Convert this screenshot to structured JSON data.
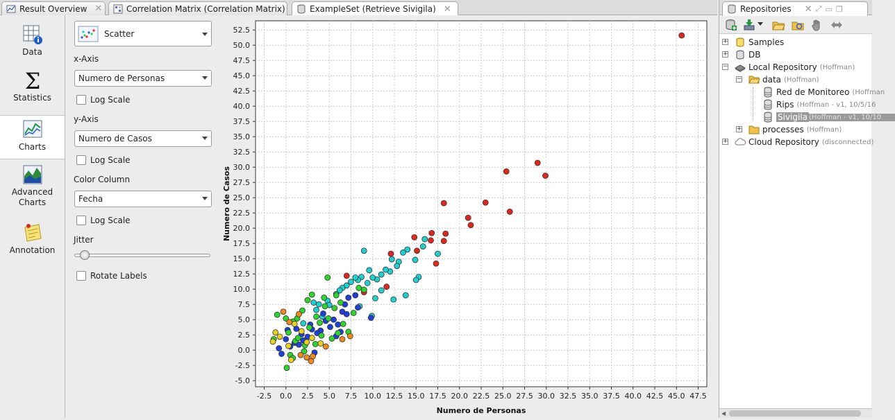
{
  "tabs": [
    {
      "label": "Result Overview",
      "active": false
    },
    {
      "label": "Correlation Matrix (Correlation Matrix)",
      "active": false
    },
    {
      "label": "ExampleSet (Retrieve Sivigila)",
      "active": true
    }
  ],
  "left_rail": [
    {
      "label": "Data",
      "icon": "table-info-icon"
    },
    {
      "label": "Statistics",
      "icon": "sigma-icon"
    },
    {
      "label": "Charts",
      "icon": "chart-icon",
      "active": true
    },
    {
      "label": "Advanced Charts",
      "icon": "advanced-chart-icon"
    },
    {
      "label": "Annotation",
      "icon": "note-icon"
    }
  ],
  "config": {
    "plot_type": "Scatter",
    "x_axis_label": "x-Axis",
    "x_axis_value": "Numero de Personas",
    "y_axis_label": "y-Axis",
    "y_axis_value": "Numero de Casos",
    "color_label": "Color Column",
    "color_value": "Fecha",
    "log_scale": "Log Scale",
    "jitter_label": "Jitter",
    "jitter_value": 0,
    "rotate_labels": "Rotate Labels"
  },
  "repositories": {
    "title": "Repositories",
    "tree": [
      {
        "name": "Samples",
        "sub": "",
        "depth": 0,
        "expander": "+",
        "icon": "samples-icon"
      },
      {
        "name": "DB",
        "sub": "",
        "depth": 0,
        "expander": "+",
        "icon": "db-icon"
      },
      {
        "name": "Local Repository",
        "sub": "(Hoffman)",
        "depth": 0,
        "expander": "-",
        "icon": "local-repo-icon"
      },
      {
        "name": "data",
        "sub": "(Hoffman)",
        "depth": 1,
        "expander": "-",
        "icon": "folder-open-icon"
      },
      {
        "name": "Red de Monitoreo",
        "sub": "(Hoffman",
        "depth": 2,
        "expander": "",
        "icon": "dataset-icon"
      },
      {
        "name": "Rips",
        "sub": "(Hoffman - v1, 10/5/16",
        "depth": 2,
        "expander": "",
        "icon": "dataset-icon"
      },
      {
        "name": "Sivigila",
        "sub": "(Hoffman - v1, 10/10",
        "depth": 2,
        "expander": "",
        "icon": "dataset-icon",
        "selected": true
      },
      {
        "name": "processes",
        "sub": "(Hoffman)",
        "depth": 1,
        "expander": "+",
        "icon": "folder-icon"
      },
      {
        "name": "Cloud Repository",
        "sub": "(disconnected)",
        "depth": 0,
        "expander": "+",
        "icon": "cloud-icon"
      }
    ]
  },
  "chart_data": {
    "type": "scatter",
    "xlabel": "Numero de Personas",
    "ylabel": "Numero de Casos",
    "xlim": [
      -3.5,
      48.5
    ],
    "ylim": [
      -6.0,
      54.0
    ],
    "xticks": [
      -2.5,
      0.0,
      2.5,
      5.0,
      7.5,
      10.0,
      12.5,
      15.0,
      17.5,
      20.0,
      22.5,
      25.0,
      27.5,
      30.0,
      32.5,
      35.0,
      37.5,
      40.0,
      42.5,
      45.0,
      47.5
    ],
    "yticks": [
      -5.0,
      -2.5,
      0.0,
      2.5,
      5.0,
      7.5,
      10.0,
      12.5,
      15.0,
      17.5,
      20.0,
      22.5,
      25.0,
      27.5,
      30.0,
      32.5,
      35.0,
      37.5,
      40.0,
      42.5,
      45.0,
      47.5,
      50.0,
      52.5
    ],
    "grid": true,
    "legend": "none",
    "color_scale": {
      "blue": "#1f3fdc",
      "teal": "#1fd0d0",
      "green": "#2cd62c",
      "yellow": "#e8d21c",
      "orange": "#f08a1c",
      "red": "#e3261c"
    },
    "points": [
      [
        45.6,
        51.6,
        "red"
      ],
      [
        29.0,
        30.7,
        "red"
      ],
      [
        29.9,
        28.6,
        "red"
      ],
      [
        25.4,
        29.3,
        "red"
      ],
      [
        25.8,
        22.7,
        "red"
      ],
      [
        23.0,
        24.2,
        "red"
      ],
      [
        21.0,
        21.7,
        "red"
      ],
      [
        21.3,
        20.5,
        "red"
      ],
      [
        18.2,
        24.1,
        "red"
      ],
      [
        18.4,
        19.1,
        "red"
      ],
      [
        18.2,
        17.9,
        "red"
      ],
      [
        16.8,
        19.2,
        "red"
      ],
      [
        16.7,
        18.0,
        "red"
      ],
      [
        17.3,
        14.2,
        "red"
      ],
      [
        14.8,
        18.5,
        "red"
      ],
      [
        15.1,
        16.3,
        "red"
      ],
      [
        12.1,
        15.8,
        "red"
      ],
      [
        11.6,
        10.4,
        "red"
      ],
      [
        9.0,
        9.5,
        "red"
      ],
      [
        7.0,
        12.2,
        "red"
      ],
      [
        16.0,
        18.2,
        "teal"
      ],
      [
        15.8,
        17.0,
        "teal"
      ],
      [
        17.5,
        15.8,
        "teal"
      ],
      [
        14.0,
        16.5,
        "teal"
      ],
      [
        13.5,
        16.0,
        "teal"
      ],
      [
        14.9,
        14.8,
        "teal"
      ],
      [
        13.0,
        14.5,
        "teal"
      ],
      [
        12.8,
        13.8,
        "teal"
      ],
      [
        12.2,
        14.9,
        "teal"
      ],
      [
        12.0,
        12.9,
        "teal"
      ],
      [
        11.5,
        13.2,
        "teal"
      ],
      [
        11.0,
        12.4,
        "teal"
      ],
      [
        10.5,
        11.6,
        "teal"
      ],
      [
        10.0,
        11.9,
        "teal"
      ],
      [
        9.6,
        13.1,
        "teal"
      ],
      [
        9.4,
        11.0,
        "teal"
      ],
      [
        9.0,
        16.3,
        "teal"
      ],
      [
        8.7,
        12.0,
        "teal"
      ],
      [
        8.3,
        11.5,
        "teal"
      ],
      [
        8.0,
        11.9,
        "teal"
      ],
      [
        7.5,
        11.2,
        "teal"
      ],
      [
        7.0,
        10.6,
        "teal"
      ],
      [
        6.5,
        10.2,
        "teal"
      ],
      [
        6.2,
        9.8,
        "teal"
      ],
      [
        5.8,
        9.2,
        "teal"
      ],
      [
        4.8,
        8.1,
        "teal"
      ],
      [
        3.8,
        7.5,
        "teal"
      ],
      [
        3.2,
        7.8,
        "teal"
      ],
      [
        10.3,
        8.5,
        "teal"
      ],
      [
        12.4,
        8.3,
        "teal"
      ],
      [
        13.8,
        9.0,
        "teal"
      ],
      [
        11.0,
        9.8,
        "teal"
      ],
      [
        15.3,
        12.0,
        "teal"
      ],
      [
        15.0,
        11.5,
        "teal"
      ],
      [
        9.9,
        5.6,
        "teal"
      ],
      [
        5.0,
        7.4,
        "teal"
      ],
      [
        3.5,
        6.6,
        "teal"
      ],
      [
        4.2,
        5.5,
        "teal"
      ],
      [
        2.0,
        4.4,
        "teal"
      ],
      [
        8.5,
        7.2,
        "teal"
      ],
      [
        8.0,
        9.0,
        "blue"
      ],
      [
        7.2,
        8.6,
        "blue"
      ],
      [
        6.8,
        7.5,
        "blue"
      ],
      [
        6.5,
        6.3,
        "blue"
      ],
      [
        5.5,
        5.0,
        "blue"
      ],
      [
        5.1,
        3.8,
        "blue"
      ],
      [
        4.6,
        4.8,
        "blue"
      ],
      [
        4.0,
        3.2,
        "blue"
      ],
      [
        3.6,
        2.8,
        "blue"
      ],
      [
        3.0,
        3.4,
        "blue"
      ],
      [
        2.5,
        2.2,
        "blue"
      ],
      [
        2.0,
        1.6,
        "blue"
      ],
      [
        1.5,
        0.9,
        "blue"
      ],
      [
        1.0,
        1.2,
        "blue"
      ],
      [
        0.5,
        0.6,
        "blue"
      ],
      [
        0.0,
        1.8,
        "blue"
      ],
      [
        -0.5,
        -0.6,
        "blue"
      ],
      [
        1.2,
        3.5,
        "blue"
      ],
      [
        2.8,
        4.2,
        "blue"
      ],
      [
        4.3,
        6.0,
        "blue"
      ],
      [
        6.0,
        4.2,
        "blue"
      ],
      [
        7.0,
        5.9,
        "blue"
      ],
      [
        8.3,
        7.0,
        "blue"
      ],
      [
        9.8,
        5.3,
        "blue"
      ],
      [
        3.3,
        -0.4,
        "blue"
      ],
      [
        5.8,
        2.3,
        "blue"
      ],
      [
        6.3,
        3.0,
        "blue"
      ],
      [
        0.2,
        3.3,
        "blue"
      ],
      [
        1.8,
        2.6,
        "blue"
      ],
      [
        -0.8,
        0.3,
        "blue"
      ],
      [
        4.4,
        8.6,
        "green"
      ],
      [
        4.8,
        11.9,
        "green"
      ],
      [
        3.0,
        9.1,
        "green"
      ],
      [
        2.5,
        8.2,
        "green"
      ],
      [
        1.9,
        6.5,
        "green"
      ],
      [
        1.3,
        5.2,
        "green"
      ],
      [
        0.8,
        4.7,
        "green"
      ],
      [
        0.0,
        5.2,
        "green"
      ],
      [
        -1.0,
        5.8,
        "green"
      ],
      [
        0.3,
        2.9,
        "green"
      ],
      [
        1.1,
        1.5,
        "green"
      ],
      [
        2.2,
        0.8,
        "green"
      ],
      [
        3.4,
        1.0,
        "green"
      ],
      [
        4.1,
        2.4,
        "green"
      ],
      [
        5.3,
        1.9,
        "green"
      ],
      [
        6.0,
        2.8,
        "green"
      ],
      [
        6.6,
        4.3,
        "green"
      ],
      [
        7.2,
        3.0,
        "green"
      ],
      [
        7.8,
        6.1,
        "green"
      ],
      [
        8.4,
        10.2,
        "green"
      ],
      [
        9.0,
        9.9,
        "green"
      ],
      [
        5.8,
        9.0,
        "green"
      ],
      [
        4.5,
        7.2,
        "green"
      ],
      [
        3.5,
        5.5,
        "green"
      ],
      [
        0.5,
        -0.8,
        "green"
      ],
      [
        0.8,
        -1.3,
        "green"
      ],
      [
        0.1,
        -2.9,
        "green"
      ],
      [
        1.4,
        2.0,
        "green"
      ],
      [
        2.7,
        3.7,
        "green"
      ],
      [
        4.9,
        5.2,
        "green"
      ],
      [
        -1.4,
        1.8,
        "green"
      ],
      [
        6.3,
        7.8,
        "green"
      ],
      [
        5.6,
        6.9,
        "green"
      ],
      [
        2.1,
        -0.2,
        "green"
      ],
      [
        3.9,
        4.5,
        "green"
      ],
      [
        -1.5,
        1.4,
        "yellow"
      ],
      [
        -1.2,
        2.9,
        "yellow"
      ],
      [
        -0.7,
        2.2,
        "yellow"
      ],
      [
        0.3,
        0.7,
        "yellow"
      ],
      [
        1.0,
        4.3,
        "yellow"
      ],
      [
        1.8,
        3.1,
        "yellow"
      ],
      [
        2.4,
        1.3,
        "yellow"
      ],
      [
        3.0,
        2.0,
        "yellow"
      ],
      [
        4.0,
        1.1,
        "yellow"
      ],
      [
        0.6,
        -1.6,
        "yellow"
      ],
      [
        -0.3,
        6.3,
        "orange"
      ],
      [
        0.4,
        4.6,
        "orange"
      ],
      [
        1.5,
        5.9,
        "orange"
      ],
      [
        2.4,
        -1.2,
        "orange"
      ],
      [
        2.9,
        -1.8,
        "orange"
      ],
      [
        3.1,
        -1.0,
        "orange"
      ],
      [
        1.7,
        -0.8,
        "orange"
      ],
      [
        6.5,
        1.8,
        "orange"
      ],
      [
        7.4,
        2.3,
        "orange"
      ],
      [
        4.6,
        0.6,
        "orange"
      ]
    ]
  }
}
